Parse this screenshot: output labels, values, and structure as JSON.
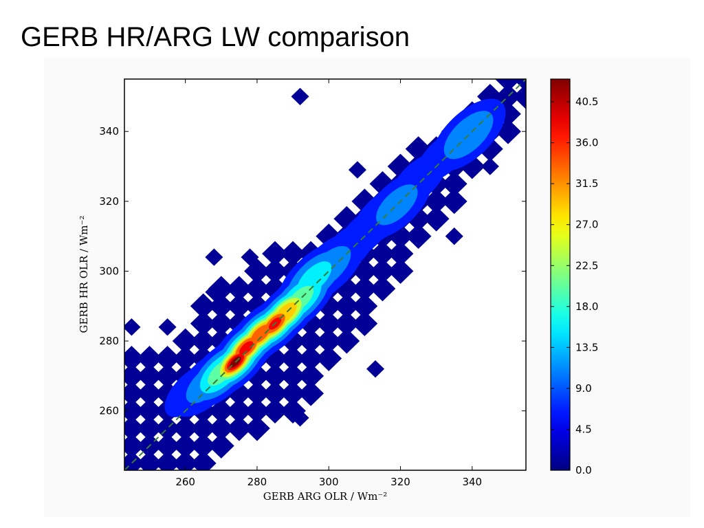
{
  "slide": {
    "title": "GERB HR/ARG LW comparison"
  },
  "chart_data": {
    "type": "heatmap",
    "title": "",
    "xlabel": "GERB ARG OLR / Wm⁻²",
    "ylabel": "GERB HR OLR / Wm⁻²",
    "xlim": [
      243,
      355
    ],
    "ylim": [
      243,
      355
    ],
    "xticks": [
      260,
      280,
      300,
      320,
      340
    ],
    "yticks": [
      260,
      280,
      300,
      320,
      340
    ],
    "colormap": "jet",
    "colorbar": {
      "min": 0.0,
      "max": 43.0,
      "tick_values": [
        0.0,
        4.5,
        9.0,
        13.5,
        18.0,
        22.5,
        27.0,
        31.5,
        36.0,
        40.5
      ],
      "tick_labels": [
        "0.0",
        "4.5",
        "9.0",
        "13.5",
        "18.0",
        "22.5",
        "27.0",
        "31.5",
        "36.0",
        "40.5"
      ]
    },
    "reference_line": {
      "style": "dashed",
      "color": "#3a7a3a",
      "from": [
        243,
        243
      ],
      "to": [
        355,
        355
      ]
    },
    "grid": false,
    "density_peak": {
      "x": 274,
      "y": 274,
      "value": 43.0
    },
    "ridge": [
      {
        "x": 250,
        "y": 252,
        "value": 1.5
      },
      {
        "x": 257,
        "y": 262,
        "value": 3.0
      },
      {
        "x": 262,
        "y": 266,
        "value": 5.0
      },
      {
        "x": 266,
        "y": 268,
        "value": 9.0
      },
      {
        "x": 270,
        "y": 271,
        "value": 18.0
      },
      {
        "x": 274,
        "y": 274,
        "value": 43.0
      },
      {
        "x": 277,
        "y": 278,
        "value": 38.0
      },
      {
        "x": 281,
        "y": 282,
        "value": 35.0
      },
      {
        "x": 285,
        "y": 285,
        "value": 36.0
      },
      {
        "x": 288,
        "y": 288,
        "value": 30.0
      },
      {
        "x": 292,
        "y": 292,
        "value": 18.0
      },
      {
        "x": 296,
        "y": 298,
        "value": 14.0
      },
      {
        "x": 300,
        "y": 301,
        "value": 10.0
      },
      {
        "x": 305,
        "y": 306,
        "value": 6.0
      },
      {
        "x": 310,
        "y": 311,
        "value": 5.0
      },
      {
        "x": 315,
        "y": 316,
        "value": 7.0
      },
      {
        "x": 319,
        "y": 319,
        "value": 9.0
      },
      {
        "x": 325,
        "y": 326,
        "value": 5.5
      },
      {
        "x": 332,
        "y": 333,
        "value": 4.5
      },
      {
        "x": 339,
        "y": 339,
        "value": 12.0
      },
      {
        "x": 346,
        "y": 346,
        "value": 3.0
      },
      {
        "x": 352,
        "y": 352,
        "value": 2.0
      }
    ],
    "support_cells_size": 5,
    "support_cells": [
      [
        245,
        245
      ],
      [
        245,
        250
      ],
      [
        245,
        255
      ],
      [
        245,
        260
      ],
      [
        245,
        265
      ],
      [
        245,
        270
      ],
      [
        245,
        275
      ],
      [
        250,
        245
      ],
      [
        250,
        250
      ],
      [
        250,
        255
      ],
      [
        250,
        260
      ],
      [
        250,
        265
      ],
      [
        250,
        270
      ],
      [
        250,
        275
      ],
      [
        255,
        245
      ],
      [
        255,
        250
      ],
      [
        255,
        255
      ],
      [
        255,
        260
      ],
      [
        255,
        265
      ],
      [
        255,
        270
      ],
      [
        255,
        275
      ],
      [
        260,
        245
      ],
      [
        260,
        250
      ],
      [
        260,
        255
      ],
      [
        260,
        260
      ],
      [
        260,
        265
      ],
      [
        260,
        270
      ],
      [
        260,
        275
      ],
      [
        260,
        280
      ],
      [
        265,
        245
      ],
      [
        265,
        250
      ],
      [
        265,
        255
      ],
      [
        265,
        260
      ],
      [
        265,
        265
      ],
      [
        265,
        270
      ],
      [
        265,
        275
      ],
      [
        265,
        280
      ],
      [
        265,
        285
      ],
      [
        265,
        290
      ],
      [
        270,
        250
      ],
      [
        270,
        255
      ],
      [
        270,
        260
      ],
      [
        270,
        265
      ],
      [
        270,
        270
      ],
      [
        270,
        275
      ],
      [
        270,
        280
      ],
      [
        270,
        285
      ],
      [
        270,
        290
      ],
      [
        270,
        295
      ],
      [
        275,
        255
      ],
      [
        275,
        260
      ],
      [
        275,
        265
      ],
      [
        275,
        270
      ],
      [
        275,
        275
      ],
      [
        275,
        280
      ],
      [
        275,
        285
      ],
      [
        275,
        290
      ],
      [
        275,
        295
      ],
      [
        280,
        255
      ],
      [
        280,
        260
      ],
      [
        280,
        265
      ],
      [
        280,
        270
      ],
      [
        280,
        275
      ],
      [
        280,
        280
      ],
      [
        280,
        285
      ],
      [
        280,
        290
      ],
      [
        280,
        295
      ],
      [
        280,
        300
      ],
      [
        285,
        260
      ],
      [
        285,
        265
      ],
      [
        285,
        270
      ],
      [
        285,
        275
      ],
      [
        285,
        280
      ],
      [
        285,
        285
      ],
      [
        285,
        290
      ],
      [
        285,
        295
      ],
      [
        285,
        300
      ],
      [
        285,
        305
      ],
      [
        290,
        260
      ],
      [
        290,
        265
      ],
      [
        290,
        270
      ],
      [
        290,
        275
      ],
      [
        290,
        280
      ],
      [
        290,
        285
      ],
      [
        290,
        290
      ],
      [
        290,
        295
      ],
      [
        290,
        300
      ],
      [
        290,
        305
      ],
      [
        295,
        265
      ],
      [
        295,
        270
      ],
      [
        295,
        275
      ],
      [
        295,
        280
      ],
      [
        295,
        285
      ],
      [
        295,
        290
      ],
      [
        295,
        295
      ],
      [
        295,
        300
      ],
      [
        295,
        305
      ],
      [
        300,
        275
      ],
      [
        300,
        280
      ],
      [
        300,
        285
      ],
      [
        300,
        290
      ],
      [
        300,
        295
      ],
      [
        300,
        300
      ],
      [
        300,
        305
      ],
      [
        300,
        310
      ],
      [
        305,
        280
      ],
      [
        305,
        285
      ],
      [
        305,
        290
      ],
      [
        305,
        295
      ],
      [
        305,
        300
      ],
      [
        305,
        305
      ],
      [
        305,
        310
      ],
      [
        305,
        315
      ],
      [
        310,
        285
      ],
      [
        310,
        290
      ],
      [
        310,
        295
      ],
      [
        310,
        300
      ],
      [
        310,
        305
      ],
      [
        310,
        310
      ],
      [
        310,
        315
      ],
      [
        310,
        320
      ],
      [
        315,
        295
      ],
      [
        315,
        300
      ],
      [
        315,
        305
      ],
      [
        315,
        310
      ],
      [
        315,
        315
      ],
      [
        315,
        320
      ],
      [
        315,
        325
      ],
      [
        320,
        300
      ],
      [
        320,
        305
      ],
      [
        320,
        310
      ],
      [
        320,
        315
      ],
      [
        320,
        320
      ],
      [
        320,
        325
      ],
      [
        320,
        330
      ],
      [
        325,
        310
      ],
      [
        325,
        315
      ],
      [
        325,
        320
      ],
      [
        325,
        325
      ],
      [
        325,
        330
      ],
      [
        325,
        335
      ],
      [
        330,
        315
      ],
      [
        330,
        320
      ],
      [
        330,
        325
      ],
      [
        330,
        330
      ],
      [
        330,
        335
      ],
      [
        335,
        320
      ],
      [
        335,
        325
      ],
      [
        335,
        330
      ],
      [
        335,
        335
      ],
      [
        335,
        340
      ],
      [
        340,
        330
      ],
      [
        340,
        335
      ],
      [
        340,
        340
      ],
      [
        340,
        345
      ],
      [
        345,
        335
      ],
      [
        345,
        340
      ],
      [
        345,
        345
      ],
      [
        345,
        350
      ],
      [
        350,
        340
      ],
      [
        350,
        345
      ],
      [
        350,
        350
      ],
      [
        350,
        355
      ],
      [
        355,
        350
      ],
      [
        355,
        355
      ]
    ],
    "outlier_cells": [
      [
        245,
        284
      ],
      [
        255,
        284
      ],
      [
        268,
        294
      ],
      [
        268,
        304
      ],
      [
        278,
        304
      ],
      [
        310,
        284
      ],
      [
        313,
        272
      ],
      [
        292,
        258
      ],
      [
        308,
        329
      ],
      [
        335,
        310
      ],
      [
        345,
        330
      ],
      [
        292,
        350
      ]
    ]
  }
}
